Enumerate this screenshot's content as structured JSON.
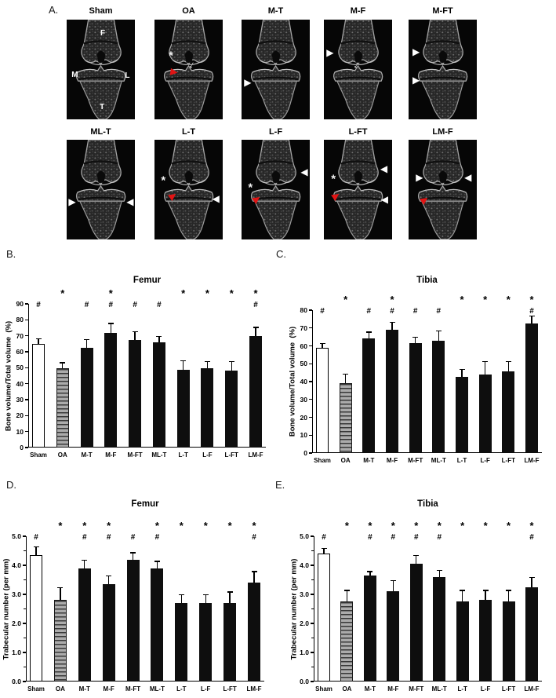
{
  "sig_symbols": {
    "star": "*",
    "hash": "#"
  },
  "colors": {
    "background": "#ffffff",
    "bar_solid": "#0e0e0e",
    "bar_open": "#ffffff",
    "hatch_base": "#ababab",
    "hatch_stripe": "#383838",
    "red_marker": "#e11414",
    "ct_background": "#060606",
    "bone_outline": "#a5a5a5"
  },
  "panel_a": {
    "label": "A.",
    "rows": [
      {
        "tiles": [
          {
            "title": "Sham",
            "markers": [
              {
                "type": "region-label",
                "text": "F",
                "x": 53,
                "y": 14
              },
              {
                "type": "region-label",
                "text": "M",
                "x": 12,
                "y": 56
              },
              {
                "type": "region-label",
                "text": "L",
                "x": 89,
                "y": 57
              },
              {
                "type": "region-label",
                "text": "T",
                "x": 52,
                "y": 88
              }
            ]
          },
          {
            "title": "OA",
            "markers": [
              {
                "type": "asterisk",
                "x": 24,
                "y": 36
              },
              {
                "type": "white-arrow",
                "x": 55,
                "y": 45,
                "rot": 28
              },
              {
                "type": "red-arrowhead",
                "x": 29,
                "y": 52,
                "rot": 8
              }
            ]
          },
          {
            "title": "M-T",
            "markers": [
              {
                "type": "white-arrowhead-right",
                "x": 9,
                "y": 63
              }
            ]
          },
          {
            "title": "M-F",
            "markers": [
              {
                "type": "white-arrowhead-right",
                "x": 9,
                "y": 33
              },
              {
                "type": "white-arrow",
                "x": 48,
                "y": 45,
                "rot": 28
              }
            ]
          },
          {
            "title": "M-FT",
            "markers": [
              {
                "type": "white-arrowhead-right",
                "x": 11,
                "y": 32
              },
              {
                "type": "white-arrowhead-right",
                "x": 11,
                "y": 61
              }
            ]
          }
        ]
      },
      {
        "tiles": [
          {
            "title": "ML-T",
            "markers": [
              {
                "type": "white-arrowhead-right",
                "x": 8,
                "y": 62
              },
              {
                "type": "white-arrowhead-left",
                "x": 93,
                "y": 62
              }
            ]
          },
          {
            "title": "L-T",
            "markers": [
              {
                "type": "asterisk",
                "x": 13,
                "y": 41
              },
              {
                "type": "red-arrowhead",
                "x": 27,
                "y": 56,
                "rot": -35
              },
              {
                "type": "white-arrowhead-left",
                "x": 90,
                "y": 59
              }
            ]
          },
          {
            "title": "L-F",
            "markers": [
              {
                "type": "asterisk",
                "x": 13,
                "y": 48
              },
              {
                "type": "white-arrowhead-left",
                "x": 92,
                "y": 32
              },
              {
                "type": "red-arrowhead",
                "x": 22,
                "y": 59,
                "rot": -35
              }
            ]
          },
          {
            "title": "L-FT",
            "markers": [
              {
                "type": "asterisk",
                "x": 14,
                "y": 39
              },
              {
                "type": "white-arrowhead-left",
                "x": 88,
                "y": 29
              },
              {
                "type": "red-arrowhead",
                "x": 17,
                "y": 56,
                "rot": -35
              },
              {
                "type": "white-arrowhead-left",
                "x": 89,
                "y": 60
              }
            ]
          },
          {
            "title": "LM-F",
            "markers": [
              {
                "type": "white-arrowhead-right",
                "x": 16,
                "y": 38
              },
              {
                "type": "white-arrowhead-left",
                "x": 87,
                "y": 38
              },
              {
                "type": "red-arrowhead",
                "x": 23,
                "y": 60,
                "rot": -35
              }
            ]
          }
        ]
      }
    ]
  },
  "chart_data": [
    {
      "id": "B",
      "panel_label": "B.",
      "type": "bar",
      "title": "Femur",
      "ylabel": "Bone volume/Total volume  (%)",
      "ylim": [
        0,
        90
      ],
      "ytick_step": 10,
      "ytick_labels": [
        "90",
        "80",
        "70",
        "60",
        "50",
        "40",
        "30",
        "20",
        "10",
        "0"
      ],
      "minor_ticks": [],
      "grid": false,
      "legend": "none",
      "categories": [
        "Sham",
        "OA",
        "M-T",
        "M-F",
        "M-FT",
        "ML-T",
        "L-T",
        "L-F",
        "L-FT",
        "LM-F"
      ],
      "bar_styles": [
        "open",
        "hatched",
        "solid",
        "solid",
        "solid",
        "solid",
        "solid",
        "solid",
        "solid",
        "solid"
      ],
      "values": [
        65,
        49.5,
        62.5,
        72,
        67.5,
        66,
        48.5,
        49.5,
        48,
        70
      ],
      "errors": [
        3.5,
        4,
        5.5,
        6,
        5.5,
        4,
        6,
        4.5,
        6,
        5.5
      ],
      "sig_star": [
        false,
        true,
        false,
        true,
        false,
        false,
        true,
        true,
        true,
        true
      ],
      "sig_hash": [
        true,
        false,
        true,
        true,
        true,
        true,
        false,
        false,
        false,
        true
      ]
    },
    {
      "id": "C",
      "panel_label": "C.",
      "type": "bar",
      "title": "Tibia",
      "ylabel": "Bone volume/Total volume  (%)",
      "ylim": [
        0,
        80
      ],
      "ytick_step": 10,
      "ytick_labels": [
        "80",
        "70",
        "60",
        "50",
        "40",
        "30",
        "20",
        "10",
        "0"
      ],
      "minor_ticks": [],
      "grid": false,
      "legend": "none",
      "categories": [
        "Sham",
        "OA",
        "M-T",
        "M-F",
        "M-FT",
        "ML-T",
        "L-T",
        "L-F",
        "L-FT",
        "LM-F"
      ],
      "bar_styles": [
        "open",
        "hatched",
        "solid",
        "solid",
        "solid",
        "solid",
        "solid",
        "solid",
        "solid",
        "solid"
      ],
      "values": [
        59,
        39,
        64,
        69,
        61.5,
        63,
        42.5,
        44,
        45.5,
        72.5
      ],
      "errors": [
        2.5,
        5.5,
        4,
        4.5,
        3.5,
        5.5,
        4.5,
        7.5,
        6,
        4.5
      ],
      "sig_star": [
        false,
        true,
        false,
        true,
        false,
        false,
        true,
        true,
        true,
        true
      ],
      "sig_hash": [
        true,
        false,
        true,
        true,
        true,
        true,
        false,
        false,
        false,
        true
      ]
    },
    {
      "id": "D",
      "panel_label": "D.",
      "type": "bar",
      "title": "Femur",
      "ylabel": "Trabecular number (per mm)",
      "ylim": [
        0,
        5
      ],
      "ytick_step": 1,
      "ytick_labels": [
        "5.0",
        "4.0",
        "3.0",
        "2.0",
        "1.0",
        "0.0"
      ],
      "minor_ticks": [
        0.5,
        1.5,
        2.5,
        3.5,
        4.5
      ],
      "grid": false,
      "legend": "none",
      "categories": [
        "Sham",
        "OA",
        "M-T",
        "M-F",
        "M-FT",
        "ML-T",
        "L-T",
        "L-F",
        "L-FT",
        "LM-F"
      ],
      "bar_styles": [
        "open",
        "hatched",
        "solid",
        "solid",
        "solid",
        "solid",
        "solid",
        "solid",
        "solid",
        "solid"
      ],
      "values": [
        4.35,
        2.8,
        3.9,
        3.35,
        4.2,
        3.9,
        2.7,
        2.7,
        2.7,
        3.4
      ],
      "errors": [
        0.3,
        0.45,
        0.3,
        0.3,
        0.25,
        0.25,
        0.3,
        0.3,
        0.4,
        0.4
      ],
      "sig_star": [
        false,
        true,
        true,
        true,
        false,
        true,
        true,
        true,
        true,
        true
      ],
      "sig_hash": [
        true,
        false,
        true,
        true,
        true,
        true,
        false,
        false,
        false,
        true
      ]
    },
    {
      "id": "E",
      "panel_label": "E.",
      "type": "bar",
      "title": "Tibia",
      "ylabel": "Trabecular number (per mm)",
      "ylim": [
        0,
        5
      ],
      "ytick_step": 1,
      "ytick_labels": [
        "5.0",
        "4.0",
        "3.0",
        "2.0",
        "1.0",
        "0.0"
      ],
      "minor_ticks": [
        0.5,
        1.5,
        2.5,
        3.5,
        4.5
      ],
      "grid": false,
      "legend": "none",
      "categories": [
        "Sham",
        "OA",
        "M-T",
        "M-F",
        "M-FT",
        "ML-T",
        "L-T",
        "L-F",
        "L-FT",
        "LM-F"
      ],
      "bar_styles": [
        "open",
        "hatched",
        "solid",
        "solid",
        "solid",
        "solid",
        "solid",
        "solid",
        "solid",
        "solid"
      ],
      "values": [
        4.4,
        2.75,
        3.65,
        3.1,
        4.05,
        3.6,
        2.75,
        2.8,
        2.75,
        3.25
      ],
      "errors": [
        0.2,
        0.4,
        0.15,
        0.4,
        0.3,
        0.25,
        0.4,
        0.35,
        0.4,
        0.35
      ],
      "sig_star": [
        false,
        true,
        true,
        true,
        true,
        true,
        true,
        true,
        true,
        true
      ],
      "sig_hash": [
        true,
        false,
        true,
        true,
        true,
        true,
        false,
        false,
        false,
        true
      ]
    }
  ]
}
